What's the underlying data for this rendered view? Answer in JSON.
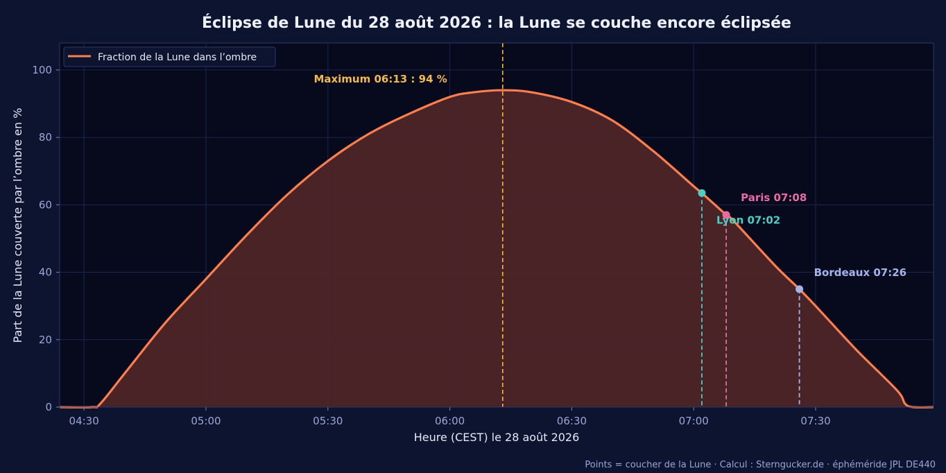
{
  "colors": {
    "background": "#0d1430",
    "plot_background": "#070a1c",
    "curve": "#ff7f50",
    "fill": "#4e2528",
    "maximum": "#f2b950",
    "lyon": "#4ecdc4",
    "paris": "#e86aa6",
    "bordeaux": "#a5b4e8"
  },
  "chart_data": {
    "type": "area",
    "title": "Éclipse de Lune du 28 août 2026 : la Lune se couche encore éclipsée",
    "xlabel": "Heure (CEST) le 28 août 2026",
    "ylabel": "Part de la Lune couverte par l’ombre en %",
    "x_ticks": [
      "04:30",
      "05:00",
      "05:30",
      "06:00",
      "06:30",
      "07:00",
      "07:30"
    ],
    "y_ticks": [
      0,
      20,
      40,
      60,
      80,
      100
    ],
    "xlim": [
      "04:24",
      "07:59"
    ],
    "ylim": [
      0,
      108
    ],
    "grid": true,
    "legend": "top-left",
    "series": [
      {
        "name": "Fraction de la Lune dans l’ombre",
        "points": [
          [
            "04:24",
            0
          ],
          [
            "04:32",
            0
          ],
          [
            "04:34",
            1
          ],
          [
            "04:40",
            10
          ],
          [
            "04:50",
            25
          ],
          [
            "05:00",
            38
          ],
          [
            "05:10",
            51
          ],
          [
            "05:20",
            63
          ],
          [
            "05:30",
            73
          ],
          [
            "05:40",
            81
          ],
          [
            "05:50",
            87
          ],
          [
            "06:00",
            92
          ],
          [
            "06:06",
            93.4
          ],
          [
            "06:13",
            94
          ],
          [
            "06:20",
            93.4
          ],
          [
            "06:30",
            90.5
          ],
          [
            "06:40",
            85
          ],
          [
            "06:50",
            76
          ],
          [
            "07:00",
            65.5
          ],
          [
            "07:02",
            63.5
          ],
          [
            "07:08",
            57
          ],
          [
            "07:10",
            55
          ],
          [
            "07:20",
            42
          ],
          [
            "07:26",
            35
          ],
          [
            "07:30",
            30
          ],
          [
            "07:40",
            17
          ],
          [
            "07:50",
            5
          ],
          [
            "07:52",
            1
          ],
          [
            "07:54",
            0
          ],
          [
            "07:59",
            0
          ]
        ]
      }
    ],
    "maximum": {
      "time": "06:13",
      "value": 94,
      "label": "Maximum 06:13 : 94 %"
    },
    "moonsets": [
      {
        "city": "Lyon",
        "time": "07:02",
        "value": 63.5,
        "label": "Lyon 07:02",
        "color": "#4ecdc4"
      },
      {
        "city": "Paris",
        "time": "07:08",
        "value": 57,
        "label": "Paris 07:08",
        "color": "#e86aa6"
      },
      {
        "city": "Bordeaux",
        "time": "07:26",
        "value": 35,
        "label": "Bordeaux 07:26",
        "color": "#a5b4e8"
      }
    ]
  },
  "footer": "Points = coucher de la Lune · Calcul : Sterngucker.de · éphéméride JPL DE440"
}
